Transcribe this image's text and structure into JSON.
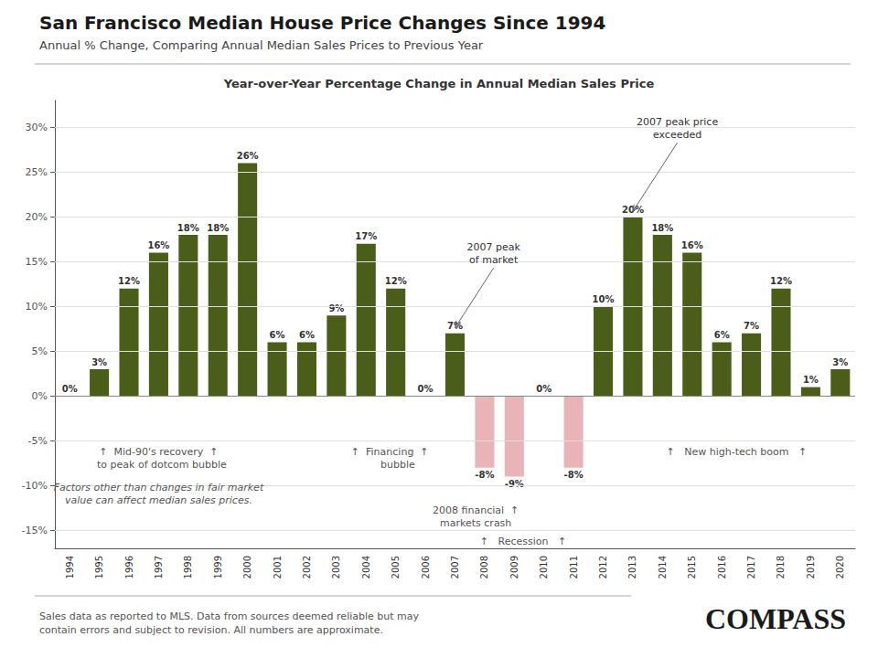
{
  "chart_data": {
    "type": "bar",
    "title": "San Francisco Median House Price Changes Since 1994",
    "subtitle": "Annual % Change, Comparing Annual Median Sales Prices to Previous Year",
    "chart_title": "Year-over-Year Percentage Change in Annual Median Sales Price",
    "categories": [
      "1994",
      "1995",
      "1996",
      "1997",
      "1998",
      "1999",
      "2000",
      "2001",
      "2002",
      "2003",
      "2004",
      "2005",
      "2006",
      "2007",
      "2008",
      "2009",
      "2010",
      "2011",
      "2012",
      "2013",
      "2014",
      "2015",
      "2016",
      "2017",
      "2018",
      "2019",
      "2020"
    ],
    "values": [
      0,
      3,
      12,
      16,
      18,
      18,
      26,
      6,
      6,
      9,
      17,
      12,
      0,
      7,
      -8,
      -9,
      0,
      -8,
      10,
      20,
      18,
      16,
      6,
      7,
      12,
      1,
      3
    ],
    "value_labels": [
      "0%",
      "3%",
      "12%",
      "16%",
      "18%",
      "18%",
      "26%",
      "6%",
      "6%",
      "9%",
      "17%",
      "12%",
      "0%",
      "7%",
      "-8%",
      "-9%",
      "0%",
      "-8%",
      "10%",
      "20%",
      "18%",
      "16%",
      "6%",
      "7%",
      "12%",
      "1%",
      "3%"
    ],
    "colors": [
      "#4a5e1a",
      "#4a5e1a",
      "#4a5e1a",
      "#4a5e1a",
      "#4a5e1a",
      "#4a5e1a",
      "#4a5e1a",
      "#4a5e1a",
      "#4a5e1a",
      "#4a5e1a",
      "#4a5e1a",
      "#4a5e1a",
      "#4a5e1a",
      "#4a5e1a",
      "#e8b4b8",
      "#e8b4b8",
      "#4a5e1a",
      "#e8b4b8",
      "#4a5e1a",
      "#4a5e1a",
      "#4a5e1a",
      "#4a5e1a",
      "#4a5e1a",
      "#4a5e1a",
      "#4a5e1a",
      "#4a5e1a",
      "#4a5e1a"
    ],
    "ylim": [
      -17,
      33
    ],
    "yticks": [
      {
        "value": -15,
        "label": "-15%"
      },
      {
        "value": -10,
        "label": "-10%"
      },
      {
        "value": -5,
        "label": "-5%"
      },
      {
        "value": 0,
        "label": "0%"
      },
      {
        "value": 5,
        "label": "5%"
      },
      {
        "value": 10,
        "label": "10%"
      },
      {
        "value": 15,
        "label": "15%"
      },
      {
        "value": 20,
        "label": "20%"
      },
      {
        "value": 25,
        "label": "25%"
      },
      {
        "value": 30,
        "label": "30%"
      }
    ],
    "grid": true,
    "data_labels": true,
    "annotations": [
      {
        "text": "2007 peak\nof market",
        "x": "2007"
      },
      {
        "text": "2007 peak price\nexceeded",
        "x": "2013"
      },
      {
        "text": "↑  Mid-90's recovery  ↑\n  to peak of dotcom bubble",
        "x": "1997"
      },
      {
        "text": "Factors other than changes in fair market\nvalue can affect median sales prices.",
        "x": "1997"
      },
      {
        "text": "↑  Financing  ↑\n     bubble",
        "x": "2005"
      },
      {
        "text": "2008 financial  ↑\nmarkets crash",
        "x": "2008"
      },
      {
        "text": "↑   Recession   ↑",
        "x": "2009"
      },
      {
        "text": "↑   New high-tech boom   ↑",
        "x": "2016"
      }
    ],
    "footer": "Sales data as reported to MLS. Data from sources deemed reliable but may\ncontain errors and subject to revision. All numbers are approximate.",
    "logo": "COMPASS"
  }
}
